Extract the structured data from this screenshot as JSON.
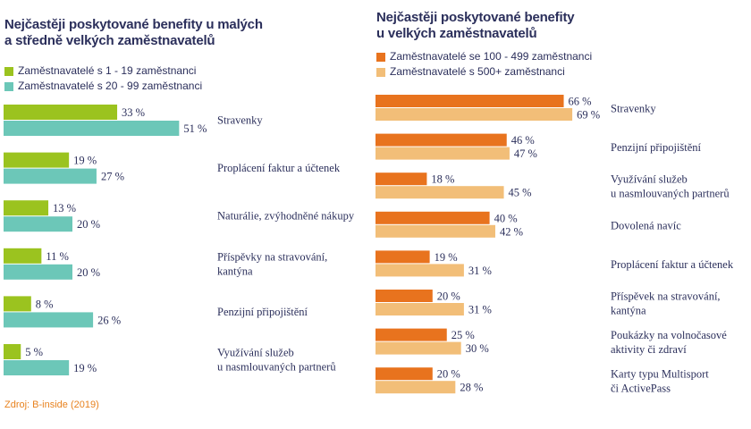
{
  "chart_data": [
    {
      "type": "bar",
      "orientation": "horizontal",
      "title": "Nejčastěji poskytované benefity u malých a středně velkých zaměstnavatelů",
      "title_lines": [
        "Nejčastěji poskytované benefity u malých",
        "a středně velkých zaměstnavatelů"
      ],
      "categories": [
        "Stravenky",
        "Proplácení faktur a účtenek",
        "Naturálie, zvýhodněné nákupy",
        "Příspěvky na stravování, kantýna",
        "Penzijní připojištění",
        "Využívání služeb u nasmlouvaných partnerů"
      ],
      "category_lines": [
        [
          "Stravenky"
        ],
        [
          "Proplácení faktur a účtenek"
        ],
        [
          "Naturálie, zvýhodněné nákupy"
        ],
        [
          "Příspěvky na stravování,",
          "kantýna"
        ],
        [
          "Penzijní připojištění"
        ],
        [
          "Využívání služeb",
          "u nasmlouvaných partnerů"
        ]
      ],
      "series": [
        {
          "name": "Zaměstnavatelé s 1 - 19 zaměstnanci",
          "color": "#9bc31f",
          "values": [
            33,
            19,
            13,
            11,
            8,
            5
          ]
        },
        {
          "name": "Zaměstnavatelé s 20 - 99 zaměstnanci",
          "color": "#6cc7b8",
          "values": [
            51,
            27,
            20,
            20,
            26,
            19
          ]
        }
      ],
      "value_suffix": " %",
      "xlim": [
        0,
        100
      ],
      "legend": "top-left"
    },
    {
      "type": "bar",
      "orientation": "horizontal",
      "title": "Nejčastěji poskytované benefity u velkých zaměstnavatelů",
      "title_lines": [
        "Nejčastěji poskytované benefity",
        "u velkých zaměstnavatelů"
      ],
      "categories": [
        "Stravenky",
        "Penzijní připojištění",
        "Využívání služeb u nasmlouvaných partnerů",
        "Dovolená navíc",
        "Proplácení faktur a účtenek",
        "Příspěvek na stravování, kantýna",
        "Poukázky na volnočasové aktivity či zdraví",
        "Karty typu Multisport či ActivePass"
      ],
      "category_lines": [
        [
          "Stravenky"
        ],
        [
          "Penzijní připojištění"
        ],
        [
          "Využívání služeb",
          "u nasmlouvaných partnerů"
        ],
        [
          "Dovolená navíc"
        ],
        [
          "Proplácení faktur a účtenek"
        ],
        [
          "Příspěvek na stravování,",
          "kantýna"
        ],
        [
          "Poukázky na volnočasové",
          "aktivity či zdraví"
        ],
        [
          "Karty typu Multisport",
          "či ActivePass"
        ]
      ],
      "series": [
        {
          "name": "Zaměstnavatelé se 100 - 499 zaměstnanci",
          "color": "#e8731e",
          "values": [
            66,
            46,
            18,
            40,
            19,
            20,
            25,
            20
          ]
        },
        {
          "name": "Zaměstnavatelé s 500+ zaměstnanci",
          "color": "#f2be78",
          "values": [
            69,
            47,
            45,
            42,
            31,
            31,
            30,
            28
          ]
        }
      ],
      "value_suffix": " %",
      "xlim": [
        0,
        100
      ],
      "legend": "top-left"
    }
  ],
  "source": "Zdroj: B-inside (2019)"
}
